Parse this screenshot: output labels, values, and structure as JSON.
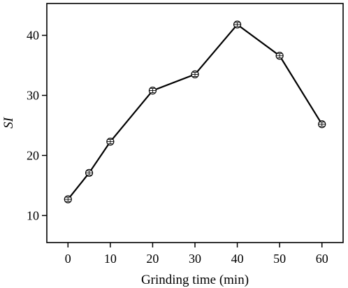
{
  "chart_data": {
    "type": "line",
    "xlabel": "Grinding time (min)",
    "ylabel": "SI",
    "x": [
      0,
      5,
      10,
      20,
      30,
      40,
      50,
      60
    ],
    "series": [
      {
        "values": [
          12.7,
          17.1,
          22.3,
          30.8,
          33.5,
          41.8,
          36.6,
          25.2
        ],
        "marker": "circle-open-with-errorbar",
        "color": "#000000"
      }
    ],
    "xlim": [
      -5,
      65
    ],
    "ylim": [
      5.5,
      45.3
    ],
    "xticks": [
      0,
      10,
      20,
      30,
      40,
      50,
      60
    ],
    "yticks": [
      10,
      20,
      30,
      40
    ],
    "grid": false,
    "legend": "none",
    "frame": "box"
  }
}
